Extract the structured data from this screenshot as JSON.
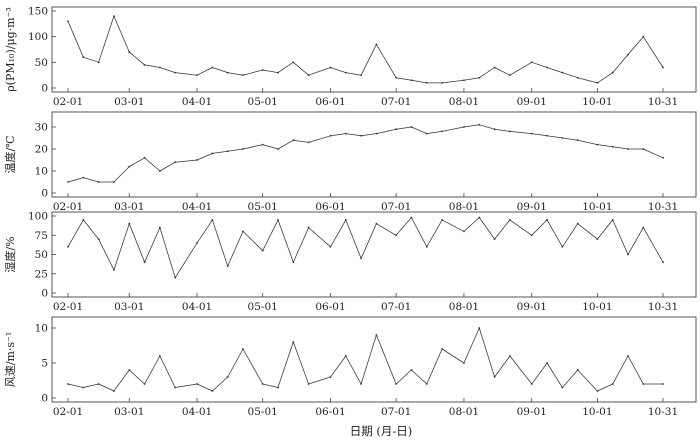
{
  "x_axis_title": "日期 (月-日)",
  "line_color": "#333333",
  "chart_data": [
    {
      "type": "line",
      "ylabel": "ρ(PM₁₀)/μg·m⁻³",
      "ylim": [
        0,
        150
      ],
      "yticks": [
        "0",
        "50",
        "100",
        "150"
      ],
      "xticks": [
        "02-01",
        "03-01",
        "04-01",
        "05-01",
        "06-01",
        "07-01",
        "08-01",
        "09-01",
        "10-01",
        "10-31"
      ],
      "x": [
        "02-01",
        "02-08",
        "02-15",
        "02-22",
        "03-01",
        "03-08",
        "03-15",
        "03-22",
        "04-01",
        "04-08",
        "04-15",
        "04-22",
        "05-01",
        "05-08",
        "05-15",
        "05-22",
        "06-01",
        "06-08",
        "06-15",
        "06-22",
        "07-01",
        "07-08",
        "07-15",
        "07-22",
        "08-01",
        "08-08",
        "08-15",
        "08-22",
        "09-01",
        "09-08",
        "09-15",
        "09-22",
        "10-01",
        "10-08",
        "10-15",
        "10-22",
        "10-31"
      ],
      "values": [
        130,
        60,
        50,
        140,
        70,
        45,
        40,
        30,
        25,
        40,
        30,
        25,
        35,
        30,
        50,
        25,
        40,
        30,
        25,
        85,
        20,
        15,
        10,
        10,
        15,
        20,
        40,
        25,
        50,
        40,
        30,
        20,
        10,
        30,
        65,
        100,
        40
      ]
    },
    {
      "type": "line",
      "ylabel": "温度/℃",
      "ylim": [
        0,
        35
      ],
      "yticks": [
        "0",
        "10",
        "20",
        "30"
      ],
      "xticks": [
        "02-01",
        "03-01",
        "04-01",
        "05-01",
        "06-01",
        "07-01",
        "08-01",
        "09-01",
        "10-01",
        "10-31"
      ],
      "x": [
        "02-01",
        "02-08",
        "02-15",
        "02-22",
        "03-01",
        "03-08",
        "03-15",
        "03-22",
        "04-01",
        "04-08",
        "04-15",
        "04-22",
        "05-01",
        "05-08",
        "05-15",
        "05-22",
        "06-01",
        "06-08",
        "06-15",
        "06-22",
        "07-01",
        "07-08",
        "07-15",
        "07-22",
        "08-01",
        "08-08",
        "08-15",
        "08-22",
        "09-01",
        "09-08",
        "09-15",
        "09-22",
        "10-01",
        "10-08",
        "10-15",
        "10-22",
        "10-31"
      ],
      "values": [
        5,
        7,
        5,
        5,
        12,
        16,
        10,
        14,
        15,
        18,
        19,
        20,
        22,
        20,
        24,
        23,
        26,
        27,
        26,
        27,
        29,
        30,
        27,
        28,
        30,
        31,
        29,
        28,
        27,
        26,
        25,
        24,
        22,
        21,
        20,
        20,
        16
      ]
    },
    {
      "type": "line",
      "ylabel": "湿度/%",
      "ylim": [
        0,
        100
      ],
      "yticks": [
        "0",
        "25",
        "50",
        "75",
        "100"
      ],
      "xticks": [
        "02-01",
        "03-01",
        "04-01",
        "05-01",
        "06-01",
        "07-01",
        "08-01",
        "09-01",
        "10-01",
        "10-31"
      ],
      "x": [
        "02-01",
        "02-08",
        "02-15",
        "02-22",
        "03-01",
        "03-08",
        "03-15",
        "03-22",
        "04-01",
        "04-08",
        "04-15",
        "04-22",
        "05-01",
        "05-08",
        "05-15",
        "05-22",
        "06-01",
        "06-08",
        "06-15",
        "06-22",
        "07-01",
        "07-08",
        "07-15",
        "07-22",
        "08-01",
        "08-08",
        "08-15",
        "08-22",
        "09-01",
        "09-08",
        "09-15",
        "09-22",
        "10-01",
        "10-08",
        "10-15",
        "10-22",
        "10-31"
      ],
      "values": [
        60,
        95,
        70,
        30,
        90,
        40,
        85,
        20,
        65,
        95,
        35,
        80,
        55,
        95,
        40,
        85,
        60,
        95,
        45,
        90,
        75,
        98,
        60,
        95,
        80,
        98,
        70,
        95,
        75,
        95,
        60,
        90,
        70,
        95,
        50,
        85,
        40
      ]
    },
    {
      "type": "line",
      "ylabel": "风速/m·s⁻¹",
      "ylim": [
        0,
        11
      ],
      "yticks": [
        "0",
        "5",
        "10"
      ],
      "xticks": [
        "02-01",
        "03-01",
        "04-01",
        "05-01",
        "06-01",
        "07-01",
        "08-01",
        "09-01",
        "10-01",
        "10-31"
      ],
      "x": [
        "02-01",
        "02-08",
        "02-15",
        "02-22",
        "03-01",
        "03-08",
        "03-15",
        "03-22",
        "04-01",
        "04-08",
        "04-15",
        "04-22",
        "05-01",
        "05-08",
        "05-15",
        "05-22",
        "06-01",
        "06-08",
        "06-15",
        "06-22",
        "07-01",
        "07-08",
        "07-15",
        "07-22",
        "08-01",
        "08-08",
        "08-15",
        "08-22",
        "09-01",
        "09-08",
        "09-15",
        "09-22",
        "10-01",
        "10-08",
        "10-15",
        "10-22",
        "10-31"
      ],
      "values": [
        2,
        1.5,
        2,
        1,
        4,
        2,
        6,
        1.5,
        2,
        1,
        3,
        7,
        2,
        1.5,
        8,
        2,
        3,
        6,
        2,
        9,
        2,
        4,
        2,
        7,
        5,
        10,
        3,
        6,
        2,
        5,
        1.5,
        4,
        1,
        2,
        6,
        2,
        2
      ]
    }
  ]
}
